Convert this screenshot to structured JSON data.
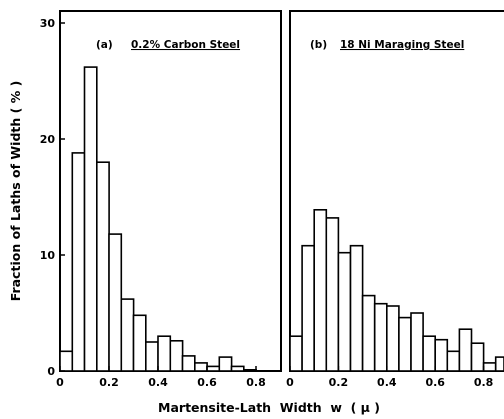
{
  "chart_data": [
    {
      "type": "bar",
      "title": "(a) 0.2% Carbon Steel",
      "title_prefix": "(a)",
      "title_text": "0.2% Carbon Steel",
      "bin_edges": [
        0.0,
        0.05,
        0.1,
        0.15,
        0.2,
        0.25,
        0.3,
        0.35,
        0.4,
        0.45,
        0.5,
        0.55,
        0.6,
        0.65,
        0.7,
        0.75,
        0.8
      ],
      "values": [
        1.7,
        18.8,
        26.2,
        18.0,
        11.8,
        6.2,
        4.8,
        2.5,
        3.0,
        2.6,
        1.3,
        0.7,
        0.4,
        1.2,
        0.4,
        0.1
      ],
      "x_ticks": [
        "0",
        "0.2",
        "0.4",
        "0.6",
        "0.8"
      ],
      "y_ticks": [
        "0",
        "10",
        "20",
        "30"
      ],
      "xlim": [
        0,
        0.9
      ],
      "ylim": [
        0,
        30
      ],
      "ylabel": "Fraction of Laths of Width ( % )"
    },
    {
      "type": "bar",
      "title": "(b) 18 Ni Maraging Steel",
      "title_prefix": "(b)",
      "title_text": "18 Ni Maraging Steel",
      "bin_edges": [
        0.0,
        0.05,
        0.1,
        0.15,
        0.2,
        0.25,
        0.3,
        0.35,
        0.4,
        0.45,
        0.5,
        0.55,
        0.6,
        0.65,
        0.7,
        0.75,
        0.8,
        0.85,
        0.9
      ],
      "values": [
        3.0,
        10.8,
        13.9,
        13.2,
        10.2,
        10.8,
        6.5,
        5.8,
        5.6,
        4.6,
        5.0,
        3.0,
        2.7,
        1.7,
        3.6,
        2.4,
        0.7,
        1.2
      ],
      "x_ticks": [
        "0",
        "0.2",
        "0.4",
        "0.6",
        "0.8"
      ],
      "y_ticks": [
        "0",
        "10",
        "20",
        "30"
      ],
      "xlim": [
        0,
        0.9
      ],
      "ylim": [
        0,
        30
      ]
    }
  ],
  "shared_xlabel": "Martensite-Lath  Width  w  ( μ )"
}
